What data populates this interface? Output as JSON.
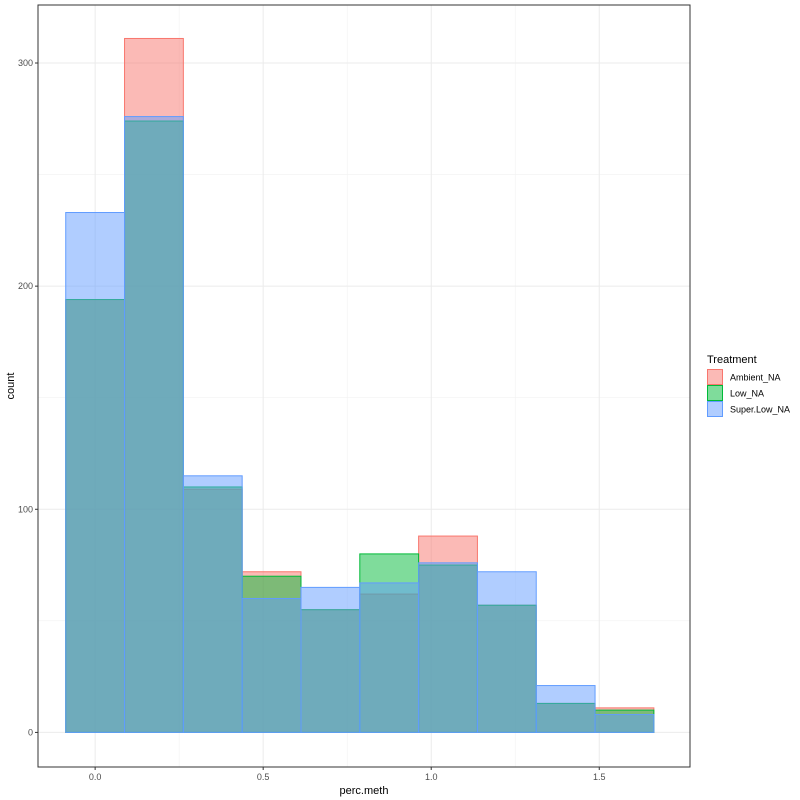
{
  "chart_data": {
    "type": "bar",
    "subtype": "overlaid-histogram",
    "xlabel": "perc.meth",
    "ylabel": "count",
    "xlim": [
      -0.17,
      1.77
    ],
    "ylim": [
      -15.5,
      326
    ],
    "x_ticks": [
      0.0,
      0.5,
      1.0,
      1.5
    ],
    "x_tick_labels": [
      "0.0",
      "0.5",
      "1.0",
      "1.5"
    ],
    "y_ticks": [
      0,
      100,
      200,
      300
    ],
    "y_tick_labels": [
      "0",
      "100",
      "200",
      "300"
    ],
    "bin_edges": [
      -0.0875,
      0.0875,
      0.2625,
      0.4375,
      0.6125,
      0.7875,
      0.9625,
      1.1375,
      1.3125,
      1.4875,
      1.6625
    ],
    "grid": true,
    "legend": {
      "title": "Treatment",
      "position": "right"
    },
    "series": [
      {
        "name": "Ambient_NA",
        "fill": "#f8766d",
        "values": [
          194,
          311,
          109,
          72,
          55,
          62,
          88,
          57,
          13,
          11
        ]
      },
      {
        "name": "Low_NA",
        "fill": "#00ba38",
        "values": [
          194,
          274,
          110,
          70,
          55,
          80,
          75,
          57,
          13,
          10
        ]
      },
      {
        "name": "Super.Low_NA",
        "fill": "#619cff",
        "values": [
          233,
          276,
          115,
          60,
          65,
          67,
          76,
          72,
          21,
          8
        ]
      }
    ]
  }
}
